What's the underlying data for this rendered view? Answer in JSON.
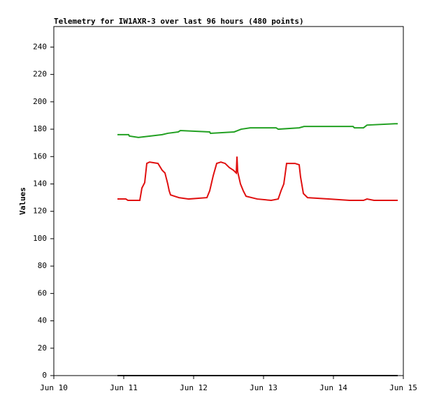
{
  "chart_data": {
    "type": "line",
    "title": "Telemetry for IW1AXR-3 over last 96 hours (480 points)",
    "y_label": "Values",
    "xlim": [
      10,
      15
    ],
    "xticks": [
      {
        "value": 10,
        "label": "Jun 10"
      },
      {
        "value": 11,
        "label": "Jun 11"
      },
      {
        "value": 12,
        "label": "Jun 12"
      },
      {
        "value": 13,
        "label": "Jun 13"
      },
      {
        "value": 14,
        "label": "Jun 14"
      },
      {
        "value": 15,
        "label": "Jun 15"
      }
    ],
    "ylim": [
      0,
      255
    ],
    "yticks": [
      0,
      20,
      40,
      60,
      80,
      100,
      120,
      140,
      160,
      180,
      200,
      220,
      240
    ],
    "series": [
      {
        "color": "#22a022",
        "x": [
          10.91,
          11.07,
          11.08,
          11.21,
          11.55,
          11.63,
          11.78,
          11.81,
          12.23,
          12.24,
          12.58,
          12.68,
          12.81,
          13.18,
          13.21,
          13.51,
          13.58,
          14.28,
          14.3,
          14.43,
          14.48,
          14.88,
          14.92
        ],
        "values": [
          176,
          176,
          175,
          174,
          176,
          177,
          178,
          179,
          178,
          177,
          178,
          180,
          181,
          181,
          180,
          181,
          182,
          182,
          181,
          181,
          183,
          184,
          184
        ]
      },
      {
        "color": "#e01010",
        "x": [
          10.91,
          11.03,
          11.06,
          11.23,
          11.26,
          11.3,
          11.33,
          11.37,
          11.49,
          11.55,
          11.59,
          11.63,
          11.65,
          11.67,
          11.79,
          11.93,
          12.19,
          12.23,
          12.28,
          12.33,
          12.39,
          12.45,
          12.51,
          12.57,
          12.61,
          12.62,
          12.63,
          12.67,
          12.71,
          12.75,
          12.91,
          13.11,
          13.21,
          13.25,
          13.29,
          13.33,
          13.45,
          13.51,
          13.53,
          13.57,
          13.63,
          13.93,
          14.23,
          14.43,
          14.48,
          14.58,
          14.92
        ],
        "values": [
          129,
          129,
          128,
          128,
          137,
          141,
          155,
          156,
          155,
          150,
          148,
          140,
          135,
          132,
          130,
          129,
          130,
          135,
          146,
          155,
          156,
          155,
          152,
          150,
          148,
          160,
          149,
          140,
          135,
          131,
          129,
          128,
          129,
          135,
          140,
          155,
          155,
          154,
          145,
          133,
          130,
          129,
          128,
          128,
          129,
          128,
          128
        ]
      },
      {
        "color": "#000000",
        "x": [
          10.91,
          14.92
        ],
        "values": [
          0,
          0
        ]
      }
    ]
  }
}
